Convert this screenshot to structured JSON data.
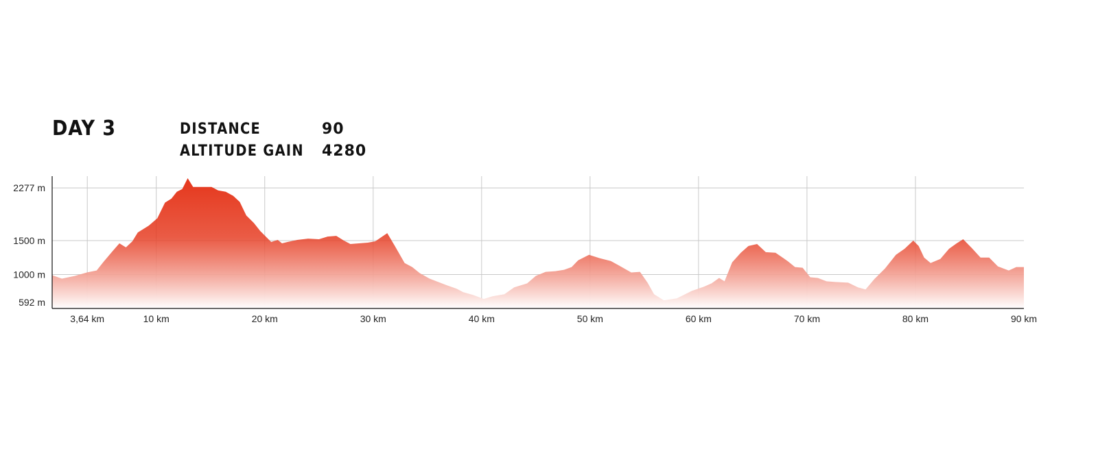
{
  "header": {
    "day": "DAY 3",
    "stats": [
      {
        "label": "DISTANCE",
        "value": "90"
      },
      {
        "label": "ALTITUDE GAIN",
        "value": "4280"
      }
    ]
  },
  "colors": {
    "fill_top": "#e5371c",
    "fill_bottom": "#ffffff",
    "grid": "#c8c8c8",
    "axis": "#111111"
  },
  "chart_data": {
    "type": "area",
    "title": "",
    "xlabel": "",
    "ylabel": "",
    "xlim": [
      0.4,
      90
    ],
    "ylim": [
      500,
      2450
    ],
    "x_ticks": [
      {
        "value": 3.64,
        "label": "3,64 km"
      },
      {
        "value": 10,
        "label": "10 km"
      },
      {
        "value": 20,
        "label": "20 km"
      },
      {
        "value": 30,
        "label": "30 km"
      },
      {
        "value": 40,
        "label": "40 km"
      },
      {
        "value": 50,
        "label": "50 km"
      },
      {
        "value": 60,
        "label": "60 km"
      },
      {
        "value": 70,
        "label": "70 km"
      },
      {
        "value": 80,
        "label": "80 km"
      },
      {
        "value": 90,
        "label": "90 km"
      }
    ],
    "y_ticks": [
      {
        "value": 2277,
        "label": "2277 m"
      },
      {
        "value": 1500,
        "label": "1500 m"
      },
      {
        "value": 1000,
        "label": "1000 m"
      },
      {
        "value": 592,
        "label": "592 m"
      }
    ],
    "grid": true,
    "elevation_m": [
      [
        0.4,
        990
      ],
      [
        1.3,
        940
      ],
      [
        2.5,
        980
      ],
      [
        3.6,
        1030
      ],
      [
        4.5,
        1060
      ],
      [
        5.2,
        1200
      ],
      [
        6.0,
        1350
      ],
      [
        6.6,
        1460
      ],
      [
        7.2,
        1400
      ],
      [
        7.8,
        1490
      ],
      [
        8.3,
        1620
      ],
      [
        9.3,
        1720
      ],
      [
        10.1,
        1830
      ],
      [
        10.8,
        2060
      ],
      [
        11.4,
        2120
      ],
      [
        11.9,
        2220
      ],
      [
        12.4,
        2260
      ],
      [
        12.9,
        2420
      ],
      [
        13.4,
        2290
      ],
      [
        14.4,
        2290
      ],
      [
        15.1,
        2290
      ],
      [
        15.7,
        2240
      ],
      [
        16.4,
        2220
      ],
      [
        17.1,
        2160
      ],
      [
        17.7,
        2070
      ],
      [
        18.3,
        1870
      ],
      [
        19.0,
        1760
      ],
      [
        19.6,
        1640
      ],
      [
        20.1,
        1560
      ],
      [
        20.6,
        1480
      ],
      [
        21.2,
        1510
      ],
      [
        21.6,
        1460
      ],
      [
        22.1,
        1480
      ],
      [
        23.0,
        1510
      ],
      [
        24.0,
        1530
      ],
      [
        25.0,
        1520
      ],
      [
        25.8,
        1560
      ],
      [
        26.6,
        1570
      ],
      [
        27.3,
        1500
      ],
      [
        27.9,
        1450
      ],
      [
        28.7,
        1460
      ],
      [
        29.5,
        1470
      ],
      [
        30.2,
        1490
      ],
      [
        31.3,
        1610
      ],
      [
        32.0,
        1420
      ],
      [
        32.9,
        1170
      ],
      [
        33.6,
        1110
      ],
      [
        34.3,
        1020
      ],
      [
        35.2,
        940
      ],
      [
        36.0,
        890
      ],
      [
        36.8,
        840
      ],
      [
        37.7,
        790
      ],
      [
        38.3,
        740
      ],
      [
        39.2,
        700
      ],
      [
        40.2,
        640
      ],
      [
        41.0,
        680
      ],
      [
        42.1,
        710
      ],
      [
        43.0,
        810
      ],
      [
        44.2,
        870
      ],
      [
        45.0,
        980
      ],
      [
        45.9,
        1040
      ],
      [
        46.8,
        1050
      ],
      [
        47.6,
        1070
      ],
      [
        48.3,
        1110
      ],
      [
        48.9,
        1210
      ],
      [
        49.9,
        1290
      ],
      [
        50.9,
        1240
      ],
      [
        51.9,
        1200
      ],
      [
        52.7,
        1130
      ],
      [
        53.8,
        1030
      ],
      [
        54.6,
        1040
      ],
      [
        55.3,
        880
      ],
      [
        55.9,
        710
      ],
      [
        56.8,
        620
      ],
      [
        58.0,
        650
      ],
      [
        59.4,
        760
      ],
      [
        60.5,
        820
      ],
      [
        61.2,
        870
      ],
      [
        61.9,
        950
      ],
      [
        62.4,
        900
      ],
      [
        63.1,
        1180
      ],
      [
        63.9,
        1320
      ],
      [
        64.6,
        1420
      ],
      [
        65.4,
        1450
      ],
      [
        66.2,
        1330
      ],
      [
        67.1,
        1320
      ],
      [
        68.2,
        1200
      ],
      [
        68.9,
        1110
      ],
      [
        69.6,
        1100
      ],
      [
        70.3,
        960
      ],
      [
        71.0,
        950
      ],
      [
        71.8,
        900
      ],
      [
        72.6,
        890
      ],
      [
        73.8,
        880
      ],
      [
        74.7,
        810
      ],
      [
        75.4,
        780
      ],
      [
        76.2,
        930
      ],
      [
        77.2,
        1090
      ],
      [
        78.2,
        1290
      ],
      [
        79.0,
        1380
      ],
      [
        79.8,
        1500
      ],
      [
        80.3,
        1420
      ],
      [
        80.8,
        1250
      ],
      [
        81.4,
        1170
      ],
      [
        82.3,
        1230
      ],
      [
        83.1,
        1380
      ],
      [
        83.8,
        1460
      ],
      [
        84.4,
        1520
      ],
      [
        85.2,
        1390
      ],
      [
        86.0,
        1250
      ],
      [
        86.8,
        1250
      ],
      [
        87.6,
        1120
      ],
      [
        88.6,
        1060
      ],
      [
        89.3,
        1110
      ],
      [
        90.0,
        1110
      ]
    ]
  }
}
